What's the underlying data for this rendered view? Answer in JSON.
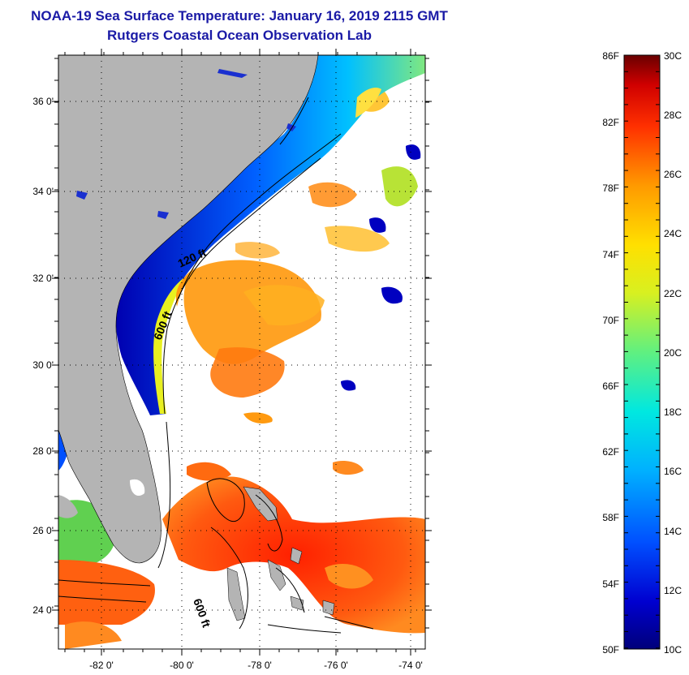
{
  "header": {
    "title": "NOAA-19 Sea Surface Temperature:  January 16, 2019 2115 GMT",
    "subtitle": "Rutgers Coastal Ocean Observation Lab"
  },
  "map": {
    "lat_labels": [
      "36 0'",
      "34 0'",
      "32 0'",
      "30 0'",
      "28 0'",
      "26 0'",
      "24 0'"
    ],
    "lon_labels": [
      "-82 0'",
      "-80 0'",
      "-78 0'",
      "-76 0'",
      "-74 0'"
    ],
    "contour_labels": [
      "120 ft",
      "600 ft",
      "600 ft"
    ],
    "colors": {
      "land": "#b4b4b4",
      "cloud": "#ffffff",
      "cold": "#0000b0",
      "warm": "#ff4010"
    }
  },
  "colorbar": {
    "fahrenheit_labels": [
      "86F",
      "82F",
      "78F",
      "74F",
      "70F",
      "66F",
      "62F",
      "58F",
      "54F",
      "50F"
    ],
    "celsius_labels": [
      "30C",
      "28C",
      "26C",
      "24C",
      "22C",
      "20C",
      "18C",
      "16C",
      "14C",
      "12C",
      "10C"
    ]
  }
}
